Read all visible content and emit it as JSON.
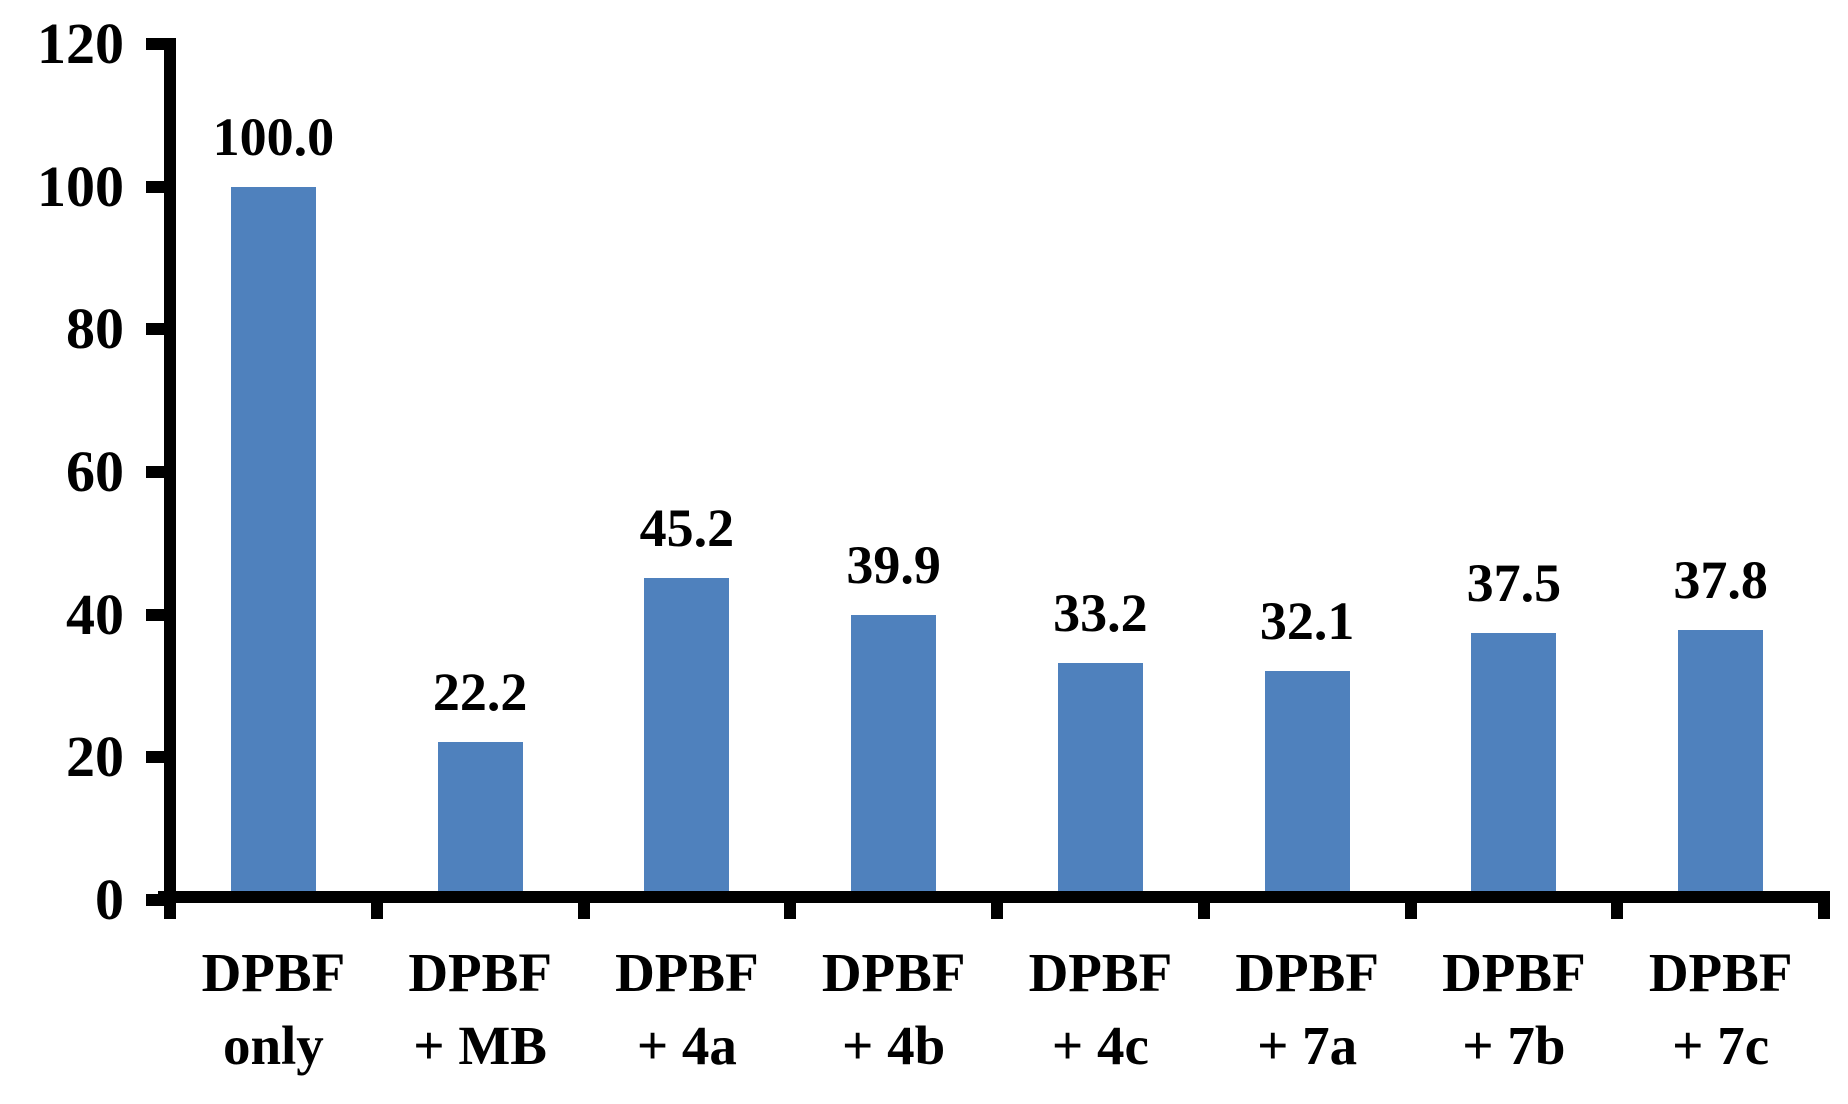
{
  "chart_data": {
    "type": "bar",
    "title": "",
    "xlabel": "",
    "ylabel": "",
    "categories": [
      "DPBF only",
      "DPBF + MB",
      "DPBF + 4a",
      "DPBF + 4b",
      "DPBF + 4c",
      "DPBF + 7a",
      "DPBF + 7b",
      "DPBF + 7c"
    ],
    "categories_lines": [
      [
        "DPBF",
        "only"
      ],
      [
        "DPBF",
        "+ MB"
      ],
      [
        "DPBF",
        "+ 4a"
      ],
      [
        "DPBF",
        "+ 4b"
      ],
      [
        "DPBF",
        "+ 4c"
      ],
      [
        "DPBF",
        "+ 7a"
      ],
      [
        "DPBF",
        "+ 7b"
      ],
      [
        "DPBF",
        "+ 7c"
      ]
    ],
    "values": [
      100.0,
      22.2,
      45.2,
      39.9,
      33.2,
      32.1,
      37.5,
      37.8
    ],
    "value_labels": [
      "100.0",
      "22.2",
      "45.2",
      "39.9",
      "33.2",
      "32.1",
      "37.5",
      "37.8"
    ],
    "ylim": [
      0,
      120
    ],
    "yticks": [
      0,
      20,
      40,
      60,
      80,
      100,
      120
    ],
    "grid": false,
    "legend": "none",
    "colors": {
      "bar": "#4F81BD",
      "axis": "#000000",
      "text": "#000000",
      "background": "#FFFFFF"
    }
  }
}
